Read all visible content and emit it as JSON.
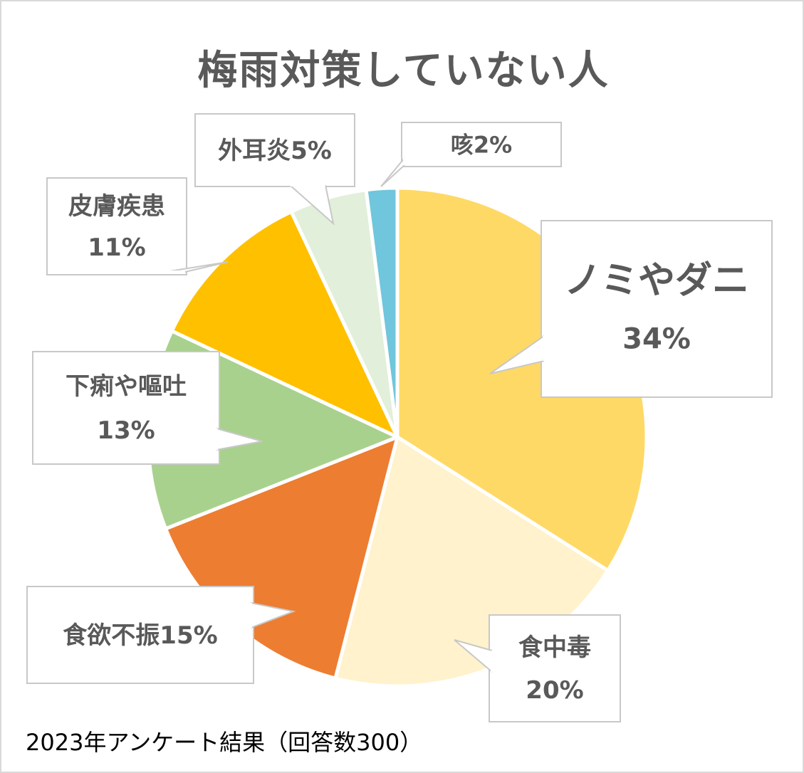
{
  "chart_data": {
    "type": "pie",
    "title": "梅雨対策していない人",
    "start_angle_deg": 0,
    "direction": "clockwise",
    "slices": [
      {
        "name": "ノミやダニ",
        "value": 34,
        "label_lines": [
          "ノミやダニ",
          "34%"
        ],
        "color": "#FFD966"
      },
      {
        "name": "食中毒",
        "value": 20,
        "label_lines": [
          "食中毒",
          "20%"
        ],
        "color": "#FFF2CC"
      },
      {
        "name": "食欲不振",
        "value": 15,
        "label_lines": [
          "食欲不振15%"
        ],
        "color": "#ED7D31"
      },
      {
        "name": "下痢や嘔吐",
        "value": 13,
        "label_lines": [
          "下痢や嘔吐",
          "13%"
        ],
        "color": "#A9D18E"
      },
      {
        "name": "皮膚疾患",
        "value": 11,
        "label_lines": [
          "皮膚疾患",
          "11%"
        ],
        "color": "#FFC000"
      },
      {
        "name": "外耳炎",
        "value": 5,
        "label_lines": [
          "外耳炎5%"
        ],
        "color": "#E2EFDA"
      },
      {
        "name": "咳",
        "value": 2,
        "label_lines": [
          "咳2%"
        ],
        "color": "#70C6DC"
      }
    ]
  },
  "footnote": "2023年アンケート結果（回答数300）"
}
